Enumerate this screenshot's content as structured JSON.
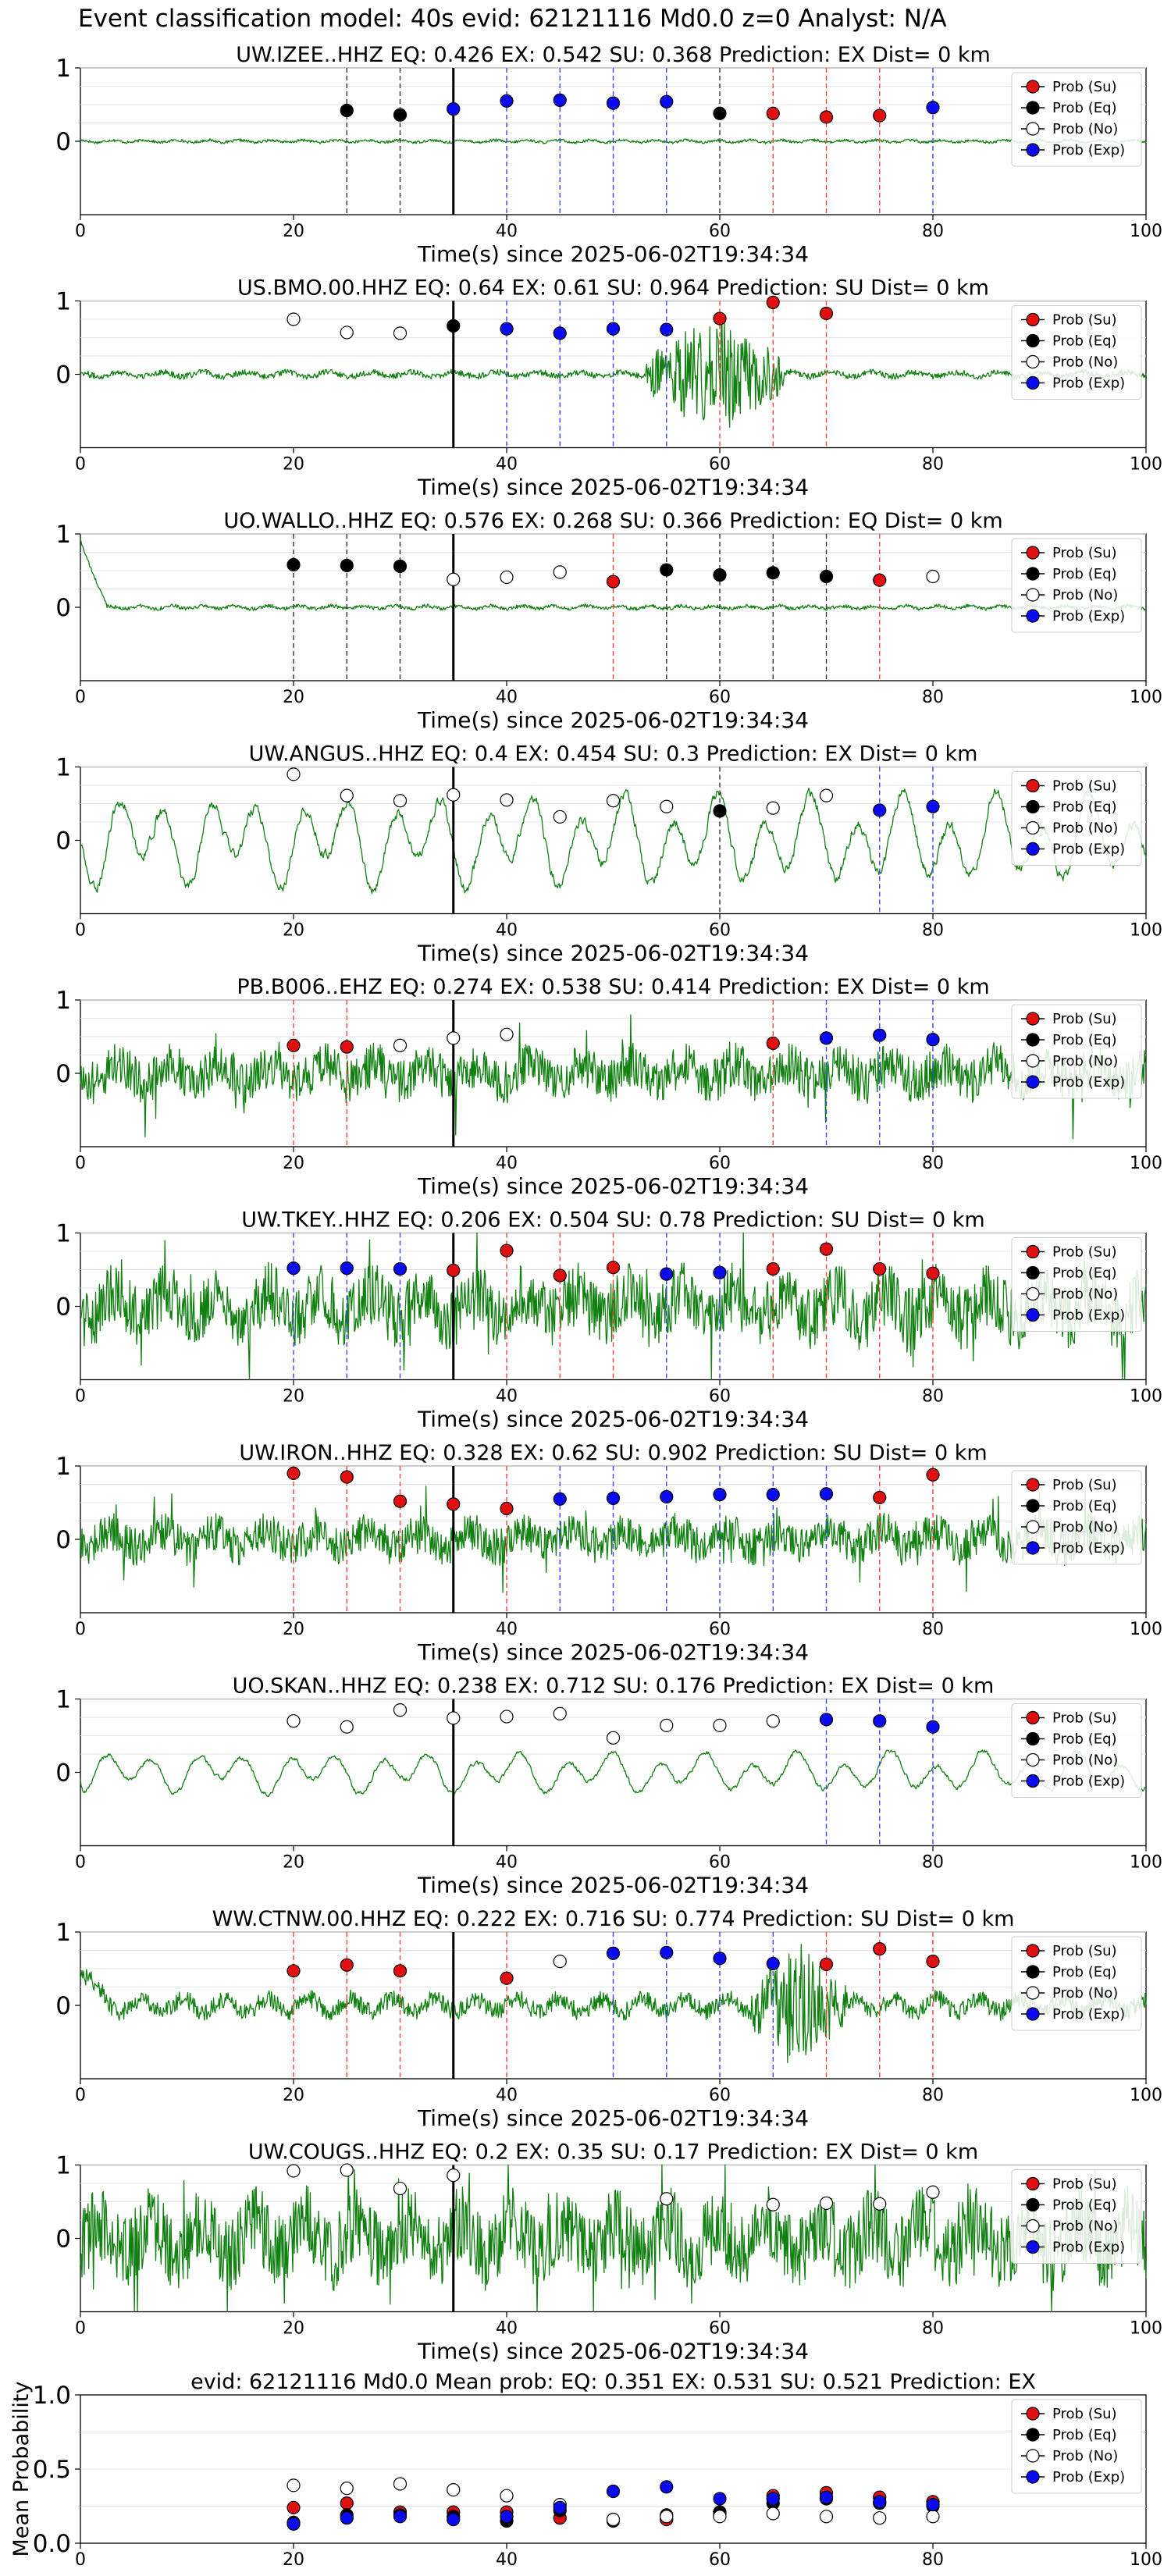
{
  "figure_title": "Event classification model: 40s evid: 62121116 Md0.0 z=0 Analyst: N/A",
  "legend_labels": [
    "Prob (Su)",
    "Prob (Eq)",
    "Prob (No)",
    "Prob (Exp)"
  ],
  "colors": {
    "su": "#e01010",
    "eq": "#000000",
    "no": "#ffffff",
    "exp": "#0a0af0",
    "waveform": "#118011",
    "su_line": "#ff4040",
    "eq_line": "#333333",
    "exp_line": "#4040ff"
  },
  "chart_data": [
    {
      "type": "scatter",
      "title": "UW.IZEE..HHZ   EQ: 0.426  EX: 0.542  SU: 0.368   Prediction: EX    Dist= 0 km",
      "xlabel": "Time(s) since 2025-06-02T19:34:34",
      "xlim": [
        0,
        100
      ],
      "ylim": [
        -1,
        1
      ],
      "xticks": [
        0,
        20,
        40,
        60,
        80,
        100
      ],
      "yticks": [
        0,
        1
      ],
      "origin_time": 35,
      "waveform_style": "quiet",
      "waveform_amplitude": 0.03,
      "points": [
        {
          "t": 25,
          "p": 0.42,
          "class": "eq"
        },
        {
          "t": 30,
          "p": 0.36,
          "class": "eq"
        },
        {
          "t": 35,
          "p": 0.44,
          "class": "exp"
        },
        {
          "t": 40,
          "p": 0.55,
          "class": "exp"
        },
        {
          "t": 45,
          "p": 0.56,
          "class": "exp"
        },
        {
          "t": 50,
          "p": 0.52,
          "class": "exp"
        },
        {
          "t": 55,
          "p": 0.54,
          "class": "exp"
        },
        {
          "t": 60,
          "p": 0.38,
          "class": "eq"
        },
        {
          "t": 65,
          "p": 0.38,
          "class": "su"
        },
        {
          "t": 70,
          "p": 0.33,
          "class": "su"
        },
        {
          "t": 75,
          "p": 0.35,
          "class": "su"
        },
        {
          "t": 80,
          "p": 0.46,
          "class": "exp"
        }
      ]
    },
    {
      "type": "scatter",
      "title": "US.BMO.00.HHZ   EQ: 0.64  EX: 0.61  SU: 0.964   Prediction: SU    Dist= 0 km",
      "xlabel": "Time(s) since 2025-06-02T19:34:34",
      "xlim": [
        0,
        100
      ],
      "ylim": [
        -1,
        1
      ],
      "xticks": [
        0,
        20,
        40,
        60,
        80,
        100
      ],
      "yticks": [
        0,
        1
      ],
      "origin_time": 35,
      "waveform_style": "burst",
      "waveform_amplitude": 0.05,
      "burst_window": [
        53,
        66
      ],
      "burst_amplitude": 0.85,
      "points": [
        {
          "t": 20,
          "p": 0.75,
          "class": "no"
        },
        {
          "t": 25,
          "p": 0.57,
          "class": "no"
        },
        {
          "t": 30,
          "p": 0.56,
          "class": "no"
        },
        {
          "t": 35,
          "p": 0.66,
          "class": "eq"
        },
        {
          "t": 40,
          "p": 0.62,
          "class": "exp"
        },
        {
          "t": 45,
          "p": 0.56,
          "class": "exp"
        },
        {
          "t": 50,
          "p": 0.62,
          "class": "exp"
        },
        {
          "t": 55,
          "p": 0.61,
          "class": "exp"
        },
        {
          "t": 60,
          "p": 0.76,
          "class": "su"
        },
        {
          "t": 65,
          "p": 0.98,
          "class": "su"
        },
        {
          "t": 70,
          "p": 0.83,
          "class": "su"
        }
      ]
    },
    {
      "type": "scatter",
      "title": "UO.WALLO..HHZ   EQ: 0.576  EX: 0.268  SU: 0.366   Prediction: EQ    Dist= 0 km",
      "xlabel": "Time(s) since 2025-06-02T19:34:34",
      "xlim": [
        0,
        100
      ],
      "ylim": [
        -1,
        1
      ],
      "xticks": [
        0,
        20,
        40,
        60,
        80,
        100
      ],
      "yticks": [
        0,
        1
      ],
      "origin_time": 35,
      "waveform_style": "quiet",
      "waveform_amplitude": 0.04,
      "onset_spike": 1.0,
      "points": [
        {
          "t": 20,
          "p": 0.58,
          "class": "eq"
        },
        {
          "t": 25,
          "p": 0.57,
          "class": "eq"
        },
        {
          "t": 30,
          "p": 0.56,
          "class": "eq"
        },
        {
          "t": 35,
          "p": 0.38,
          "class": "no"
        },
        {
          "t": 40,
          "p": 0.41,
          "class": "no"
        },
        {
          "t": 45,
          "p": 0.48,
          "class": "no"
        },
        {
          "t": 50,
          "p": 0.35,
          "class": "su"
        },
        {
          "t": 55,
          "p": 0.51,
          "class": "eq"
        },
        {
          "t": 60,
          "p": 0.44,
          "class": "eq"
        },
        {
          "t": 65,
          "p": 0.47,
          "class": "eq"
        },
        {
          "t": 70,
          "p": 0.42,
          "class": "eq"
        },
        {
          "t": 75,
          "p": 0.37,
          "class": "su"
        },
        {
          "t": 80,
          "p": 0.42,
          "class": "no"
        }
      ]
    },
    {
      "type": "scatter",
      "title": "UW.ANGUS..HHZ   EQ: 0.4  EX: 0.454  SU: 0.3    Prediction: EX    Dist= 0 km",
      "xlabel": "Time(s) since 2025-06-02T19:34:34",
      "xlim": [
        0,
        100
      ],
      "ylim": [
        -1,
        1
      ],
      "xticks": [
        0,
        20,
        40,
        60,
        80,
        100
      ],
      "yticks": [
        0,
        1
      ],
      "origin_time": 35,
      "waveform_style": "oscillating",
      "waveform_amplitude": 0.8,
      "points": [
        {
          "t": 20,
          "p": 0.9,
          "class": "no"
        },
        {
          "t": 25,
          "p": 0.61,
          "class": "no"
        },
        {
          "t": 30,
          "p": 0.54,
          "class": "no"
        },
        {
          "t": 35,
          "p": 0.62,
          "class": "no"
        },
        {
          "t": 40,
          "p": 0.55,
          "class": "no"
        },
        {
          "t": 45,
          "p": 0.32,
          "class": "no"
        },
        {
          "t": 50,
          "p": 0.54,
          "class": "no"
        },
        {
          "t": 55,
          "p": 0.46,
          "class": "no"
        },
        {
          "t": 60,
          "p": 0.4,
          "class": "eq"
        },
        {
          "t": 65,
          "p": 0.44,
          "class": "no"
        },
        {
          "t": 70,
          "p": 0.61,
          "class": "no"
        },
        {
          "t": 75,
          "p": 0.41,
          "class": "exp"
        },
        {
          "t": 80,
          "p": 0.46,
          "class": "exp"
        }
      ]
    },
    {
      "type": "scatter",
      "title": "PB.B006..EHZ   EQ: 0.274  EX: 0.538  SU: 0.414   Prediction: EX    Dist= 0 km",
      "xlabel": "Time(s) since 2025-06-02T19:34:34",
      "xlim": [
        0,
        100
      ],
      "ylim": [
        -1,
        1
      ],
      "xticks": [
        0,
        20,
        40,
        60,
        80,
        100
      ],
      "yticks": [
        0,
        1
      ],
      "origin_time": 35,
      "waveform_style": "noisy",
      "waveform_amplitude": 0.35,
      "points": [
        {
          "t": 20,
          "p": 0.38,
          "class": "su"
        },
        {
          "t": 25,
          "p": 0.36,
          "class": "su"
        },
        {
          "t": 30,
          "p": 0.38,
          "class": "no"
        },
        {
          "t": 35,
          "p": 0.48,
          "class": "no"
        },
        {
          "t": 40,
          "p": 0.53,
          "class": "no"
        },
        {
          "t": 65,
          "p": 0.41,
          "class": "su"
        },
        {
          "t": 70,
          "p": 0.48,
          "class": "exp"
        },
        {
          "t": 75,
          "p": 0.52,
          "class": "exp"
        },
        {
          "t": 80,
          "p": 0.46,
          "class": "exp"
        }
      ]
    },
    {
      "type": "scatter",
      "title": "UW.TKEY..HHZ   EQ: 0.206  EX: 0.504  SU: 0.78   Prediction: SU    Dist= 0 km",
      "xlabel": "Time(s) since 2025-06-02T19:34:34",
      "xlim": [
        0,
        100
      ],
      "ylim": [
        -1,
        1
      ],
      "xticks": [
        0,
        20,
        40,
        60,
        80,
        100
      ],
      "yticks": [
        0,
        1
      ],
      "origin_time": 35,
      "waveform_style": "noisy",
      "waveform_amplitude": 0.5,
      "points": [
        {
          "t": 20,
          "p": 0.52,
          "class": "exp"
        },
        {
          "t": 25,
          "p": 0.52,
          "class": "exp"
        },
        {
          "t": 30,
          "p": 0.51,
          "class": "exp"
        },
        {
          "t": 35,
          "p": 0.49,
          "class": "su"
        },
        {
          "t": 40,
          "p": 0.76,
          "class": "su"
        },
        {
          "t": 45,
          "p": 0.42,
          "class": "su"
        },
        {
          "t": 50,
          "p": 0.53,
          "class": "su"
        },
        {
          "t": 55,
          "p": 0.44,
          "class": "exp"
        },
        {
          "t": 60,
          "p": 0.46,
          "class": "exp"
        },
        {
          "t": 65,
          "p": 0.51,
          "class": "su"
        },
        {
          "t": 70,
          "p": 0.78,
          "class": "su"
        },
        {
          "t": 75,
          "p": 0.51,
          "class": "su"
        },
        {
          "t": 80,
          "p": 0.45,
          "class": "su"
        }
      ]
    },
    {
      "type": "scatter",
      "title": "UW.IRON..HHZ   EQ: 0.328  EX: 0.62  SU: 0.902   Prediction: SU    Dist= 0 km",
      "xlabel": "Time(s) since 2025-06-02T19:34:34",
      "xlim": [
        0,
        100
      ],
      "ylim": [
        -1,
        1
      ],
      "xticks": [
        0,
        20,
        40,
        60,
        80,
        100
      ],
      "yticks": [
        0,
        1
      ],
      "origin_time": 35,
      "waveform_style": "noisy",
      "waveform_amplitude": 0.3,
      "points": [
        {
          "t": 20,
          "p": 0.9,
          "class": "su"
        },
        {
          "t": 25,
          "p": 0.85,
          "class": "su"
        },
        {
          "t": 30,
          "p": 0.52,
          "class": "su"
        },
        {
          "t": 35,
          "p": 0.48,
          "class": "su"
        },
        {
          "t": 40,
          "p": 0.42,
          "class": "su"
        },
        {
          "t": 45,
          "p": 0.55,
          "class": "exp"
        },
        {
          "t": 50,
          "p": 0.56,
          "class": "exp"
        },
        {
          "t": 55,
          "p": 0.58,
          "class": "exp"
        },
        {
          "t": 60,
          "p": 0.61,
          "class": "exp"
        },
        {
          "t": 65,
          "p": 0.61,
          "class": "exp"
        },
        {
          "t": 70,
          "p": 0.62,
          "class": "exp"
        },
        {
          "t": 75,
          "p": 0.57,
          "class": "su"
        },
        {
          "t": 80,
          "p": 0.88,
          "class": "su"
        }
      ]
    },
    {
      "type": "scatter",
      "title": "UO.SKAN..HHZ   EQ: 0.238  EX: 0.712  SU: 0.176   Prediction: EX    Dist= 0 km",
      "xlabel": "Time(s) since 2025-06-02T19:34:34",
      "xlim": [
        0,
        100
      ],
      "ylim": [
        -1,
        1
      ],
      "xticks": [
        0,
        20,
        40,
        60,
        80,
        100
      ],
      "yticks": [
        0,
        1
      ],
      "origin_time": 35,
      "waveform_style": "oscillating",
      "waveform_amplitude": 0.35,
      "points": [
        {
          "t": 20,
          "p": 0.7,
          "class": "no"
        },
        {
          "t": 25,
          "p": 0.62,
          "class": "no"
        },
        {
          "t": 30,
          "p": 0.85,
          "class": "no"
        },
        {
          "t": 35,
          "p": 0.74,
          "class": "no"
        },
        {
          "t": 40,
          "p": 0.76,
          "class": "no"
        },
        {
          "t": 45,
          "p": 0.8,
          "class": "no"
        },
        {
          "t": 50,
          "p": 0.47,
          "class": "no"
        },
        {
          "t": 55,
          "p": 0.64,
          "class": "no"
        },
        {
          "t": 60,
          "p": 0.64,
          "class": "no"
        },
        {
          "t": 65,
          "p": 0.7,
          "class": "no"
        },
        {
          "t": 70,
          "p": 0.72,
          "class": "exp"
        },
        {
          "t": 75,
          "p": 0.7,
          "class": "exp"
        },
        {
          "t": 80,
          "p": 0.62,
          "class": "exp"
        }
      ]
    },
    {
      "type": "scatter",
      "title": "WW.CTNW.00.HHZ   EQ: 0.222  EX: 0.716  SU: 0.774   Prediction: SU    Dist= 0 km",
      "xlabel": "Time(s) since 2025-06-02T19:34:34",
      "xlim": [
        0,
        100
      ],
      "ylim": [
        -1,
        1
      ],
      "xticks": [
        0,
        20,
        40,
        60,
        80,
        100
      ],
      "yticks": [
        0,
        1
      ],
      "origin_time": 35,
      "waveform_style": "burst",
      "waveform_amplitude": 0.15,
      "burst_window": [
        63,
        72
      ],
      "burst_amplitude": 0.85,
      "onset_spike": 0.6,
      "points": [
        {
          "t": 20,
          "p": 0.47,
          "class": "su"
        },
        {
          "t": 25,
          "p": 0.55,
          "class": "su"
        },
        {
          "t": 30,
          "p": 0.47,
          "class": "su"
        },
        {
          "t": 40,
          "p": 0.37,
          "class": "su"
        },
        {
          "t": 45,
          "p": 0.6,
          "class": "no"
        },
        {
          "t": 50,
          "p": 0.71,
          "class": "exp"
        },
        {
          "t": 55,
          "p": 0.72,
          "class": "exp"
        },
        {
          "t": 60,
          "p": 0.64,
          "class": "exp"
        },
        {
          "t": 65,
          "p": 0.57,
          "class": "exp"
        },
        {
          "t": 70,
          "p": 0.56,
          "class": "su"
        },
        {
          "t": 75,
          "p": 0.77,
          "class": "su"
        },
        {
          "t": 80,
          "p": 0.6,
          "class": "su"
        }
      ]
    },
    {
      "type": "scatter",
      "title": "UW.COUGS..HHZ   EQ: 0.2  EX: 0.35  SU: 0.17   Prediction: EX    Dist= 0 km",
      "xlabel": "Time(s) since 2025-06-02T19:34:34",
      "xlim": [
        0,
        100
      ],
      "ylim": [
        -1,
        1
      ],
      "xticks": [
        0,
        20,
        40,
        60,
        80,
        100
      ],
      "yticks": [
        0,
        1
      ],
      "origin_time": 35,
      "waveform_style": "noisy",
      "waveform_amplitude": 0.6,
      "points": [
        {
          "t": 20,
          "p": 0.92,
          "class": "no"
        },
        {
          "t": 25,
          "p": 0.93,
          "class": "no"
        },
        {
          "t": 30,
          "p": 0.68,
          "class": "no"
        },
        {
          "t": 35,
          "p": 0.86,
          "class": "no"
        },
        {
          "t": 55,
          "p": 0.54,
          "class": "no"
        },
        {
          "t": 65,
          "p": 0.46,
          "class": "no"
        },
        {
          "t": 70,
          "p": 0.48,
          "class": "no"
        },
        {
          "t": 75,
          "p": 0.47,
          "class": "no"
        },
        {
          "t": 80,
          "p": 0.63,
          "class": "no"
        }
      ]
    },
    {
      "type": "scatter",
      "title": "evid: 62121116  Md0.0   Mean prob:   EQ: 0.351  EX: 0.531  SU: 0.521   Prediction: EX",
      "ylabel": "Mean Probability",
      "xlim": [
        0,
        100
      ],
      "ylim": [
        0,
        1
      ],
      "xticks": [
        0,
        20,
        40,
        60,
        80,
        100
      ],
      "yticks": [
        0.0,
        0.5,
        1.0
      ],
      "ytick_labels": [
        "0.0",
        "0.5",
        "1.0"
      ],
      "series": [
        {
          "name": "Prob (Su)",
          "class": "su",
          "x": [
            20,
            25,
            30,
            35,
            40,
            45,
            50,
            55,
            60,
            65,
            70,
            75,
            80
          ],
          "y": [
            0.24,
            0.27,
            0.21,
            0.21,
            0.21,
            0.17,
            0.16,
            0.16,
            0.2,
            0.32,
            0.34,
            0.31,
            0.28
          ]
        },
        {
          "name": "Prob (Eq)",
          "class": "eq",
          "x": [
            20,
            25,
            30,
            35,
            40,
            45,
            50,
            55,
            60,
            65,
            70,
            75,
            80
          ],
          "y": [
            0.14,
            0.19,
            0.19,
            0.18,
            0.15,
            0.22,
            0.15,
            0.19,
            0.21,
            0.27,
            0.3,
            0.27,
            0.25
          ]
        },
        {
          "name": "Prob (No)",
          "class": "no",
          "x": [
            20,
            25,
            30,
            35,
            40,
            45,
            50,
            55,
            60,
            65,
            70,
            75,
            80
          ],
          "y": [
            0.39,
            0.37,
            0.4,
            0.36,
            0.32,
            0.26,
            0.16,
            0.18,
            0.18,
            0.2,
            0.18,
            0.17,
            0.18
          ]
        },
        {
          "name": "Prob (Exp)",
          "class": "exp",
          "x": [
            20,
            25,
            30,
            35,
            40,
            45,
            50,
            55,
            60,
            65,
            70,
            75,
            80
          ],
          "y": [
            0.13,
            0.17,
            0.18,
            0.16,
            0.18,
            0.24,
            0.35,
            0.38,
            0.3,
            0.3,
            0.31,
            0.28,
            0.26
          ]
        }
      ]
    }
  ]
}
